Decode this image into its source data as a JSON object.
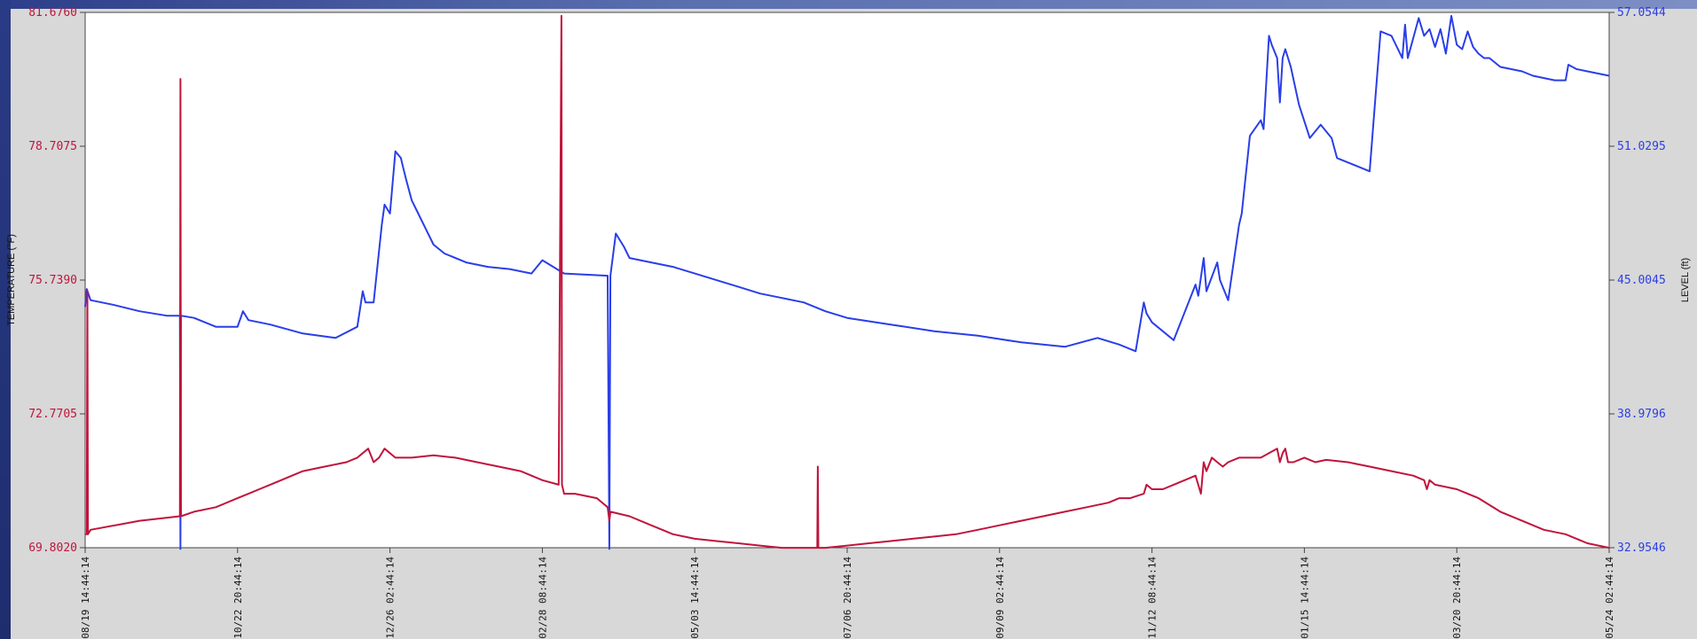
{
  "chart_data": {
    "type": "line",
    "left_axis": {
      "label": "TEMPERATURE (°F)",
      "ticks": [
        "81.6760",
        "78.7075",
        "75.7390",
        "72.7705",
        "69.8020"
      ],
      "range": [
        69.802,
        81.676
      ],
      "color": "#c0143c"
    },
    "right_axis": {
      "label": "LEVEL (ft)",
      "ticks": [
        "57.0544",
        "51.0295",
        "45.0045",
        "38.9796",
        "32.9546"
      ],
      "range": [
        32.9546,
        57.0544
      ],
      "color": "#2a3ee8"
    },
    "x_axis": {
      "range": [
        0,
        280
      ],
      "ticks": [
        {
          "t": 0,
          "label": "08/19 14:44:14"
        },
        {
          "t": 28,
          "label": "10/22 20:44:14"
        },
        {
          "t": 56,
          "label": "12/26 02:44:14"
        },
        {
          "t": 84,
          "label": "02/28 08:44:14"
        },
        {
          "t": 112,
          "label": "05/03 14:44:14"
        },
        {
          "t": 140,
          "label": "07/06 20:44:14"
        },
        {
          "t": 168,
          "label": "09/09 02:44:14"
        },
        {
          "t": 196,
          "label": "11/12 08:44:14"
        },
        {
          "t": 224,
          "label": "01/15 14:44:14"
        },
        {
          "t": 252,
          "label": "03/20 20:44:14"
        },
        {
          "t": 280,
          "label": "05/24 02:44:14"
        }
      ]
    },
    "series": [
      {
        "axis": "right",
        "color": "#2a3ee8",
        "x": [
          0,
          0.3,
          1,
          5,
          10,
          15,
          17.4,
          17.5,
          17.6,
          20,
          24,
          28,
          29,
          30,
          34,
          40,
          46,
          50,
          51,
          51.5,
          53,
          54.5,
          55,
          56,
          57,
          58,
          58.5,
          59,
          60,
          62,
          64,
          66,
          70,
          74,
          78,
          82,
          84,
          86,
          88,
          96,
          96.3,
          96.5,
          97.5,
          99,
          100,
          104,
          108,
          112,
          116,
          120,
          124,
          128,
          132,
          136,
          140,
          148,
          156,
          164,
          172,
          180,
          186,
          190,
          193,
          194.5,
          195,
          196,
          200,
          204,
          204.5,
          205.5,
          206,
          208,
          208.5,
          210,
          212,
          212.5,
          214,
          216,
          216.5,
          217.5,
          218,
          219,
          219.5,
          220,
          220.5,
          221.5,
          223,
          225,
          227,
          229,
          230,
          231,
          232,
          234,
          236,
          238,
          240,
          241,
          242,
          242.5,
          243,
          245,
          246,
          247,
          248,
          249,
          250,
          251,
          252,
          253,
          254,
          255,
          256,
          257,
          258,
          260,
          262,
          264,
          266,
          270,
          272,
          272.5,
          274,
          276,
          278,
          280
        ],
        "values": [
          43.8,
          44.6,
          44.1,
          43.9,
          43.6,
          43.4,
          43.4,
          32.9,
          43.4,
          43.3,
          42.9,
          42.9,
          43.6,
          43.2,
          43.0,
          42.6,
          42.4,
          42.9,
          44.5,
          44.0,
          44.0,
          47.5,
          48.4,
          48.0,
          50.8,
          50.5,
          50.0,
          49.5,
          48.6,
          47.6,
          46.6,
          46.2,
          45.8,
          45.6,
          45.5,
          45.3,
          45.9,
          45.6,
          45.3,
          45.2,
          32.9,
          45.2,
          47.1,
          46.5,
          46.0,
          45.8,
          45.6,
          45.3,
          45.0,
          44.7,
          44.4,
          44.2,
          44.0,
          43.6,
          43.3,
          43.0,
          42.7,
          42.5,
          42.2,
          42.0,
          42.4,
          42.1,
          41.8,
          44.0,
          43.5,
          43.1,
          42.3,
          44.8,
          44.3,
          46.0,
          44.5,
          45.8,
          45.0,
          44.1,
          47.5,
          48.0,
          51.5,
          52.2,
          51.8,
          56.0,
          55.6,
          55.0,
          53.0,
          55.0,
          55.4,
          54.6,
          52.9,
          51.4,
          52.0,
          51.4,
          50.5,
          50.4,
          50.3,
          50.1,
          49.9,
          56.2,
          56.0,
          55.5,
          55.0,
          56.5,
          55.0,
          56.8,
          56.0,
          56.3,
          55.5,
          56.3,
          55.2,
          56.9,
          55.6,
          55.4,
          56.2,
          55.5,
          55.2,
          55.0,
          55.0,
          54.6,
          54.5,
          54.4,
          54.2,
          54.0,
          54.0,
          54.7,
          54.5,
          54.4,
          54.3,
          54.2
        ]
      },
      {
        "axis": "left",
        "color": "#c0143c",
        "x": [
          0,
          0.3,
          0.4,
          0.5,
          1,
          10,
          17.4,
          17.5,
          17.6,
          20,
          24,
          28,
          30,
          32,
          34,
          36,
          40,
          44,
          48,
          50,
          51,
          52,
          53,
          54,
          55,
          56,
          57,
          58,
          60,
          64,
          68,
          72,
          76,
          80,
          84,
          87,
          87.5,
          87.6,
          88,
          90,
          94,
          96,
          96.3,
          96.5,
          100,
          104,
          108,
          112,
          116,
          120,
          124,
          128,
          132,
          134.5,
          134.6,
          134.7,
          136,
          140,
          144,
          148,
          152,
          156,
          160,
          164,
          168,
          172,
          176,
          180,
          184,
          188,
          190,
          192,
          194.5,
          195,
          196,
          198,
          200,
          204,
          205,
          205.5,
          206,
          207,
          208,
          209,
          210,
          212,
          216,
          219,
          219.5,
          220,
          220.5,
          221,
          222,
          224,
          226,
          228,
          232,
          236,
          240,
          244,
          246,
          246.5,
          247,
          248,
          252,
          256,
          260,
          264,
          268,
          272,
          276,
          280
        ],
        "values": [
          70.1,
          70.1,
          75.5,
          70.1,
          70.2,
          70.4,
          70.5,
          80.2,
          70.5,
          70.6,
          70.7,
          70.9,
          71.0,
          71.1,
          71.2,
          71.3,
          71.5,
          71.6,
          71.7,
          71.8,
          71.9,
          72.0,
          71.7,
          71.8,
          72.0,
          71.9,
          71.8,
          71.8,
          71.8,
          71.85,
          71.8,
          71.7,
          71.6,
          71.5,
          71.3,
          71.2,
          81.6,
          71.2,
          71.0,
          71.0,
          70.9,
          70.7,
          70.4,
          70.6,
          70.5,
          70.3,
          70.1,
          70.0,
          69.95,
          69.9,
          69.85,
          69.8,
          69.8,
          69.8,
          71.6,
          69.8,
          69.8,
          69.85,
          69.9,
          69.95,
          70.0,
          70.05,
          70.1,
          70.2,
          70.3,
          70.4,
          70.5,
          70.6,
          70.7,
          70.8,
          70.9,
          70.9,
          71.0,
          71.2,
          71.1,
          71.1,
          71.2,
          71.4,
          71.0,
          71.7,
          71.5,
          71.8,
          71.7,
          71.6,
          71.7,
          71.8,
          71.8,
          72.0,
          71.7,
          71.9,
          72.0,
          71.7,
          71.7,
          71.8,
          71.7,
          71.75,
          71.7,
          71.6,
          71.5,
          71.4,
          71.3,
          71.1,
          71.3,
          71.2,
          71.1,
          70.9,
          70.6,
          70.4,
          70.2,
          70.1,
          69.9,
          69.8
        ]
      }
    ],
    "grid": false,
    "legend": "none"
  }
}
